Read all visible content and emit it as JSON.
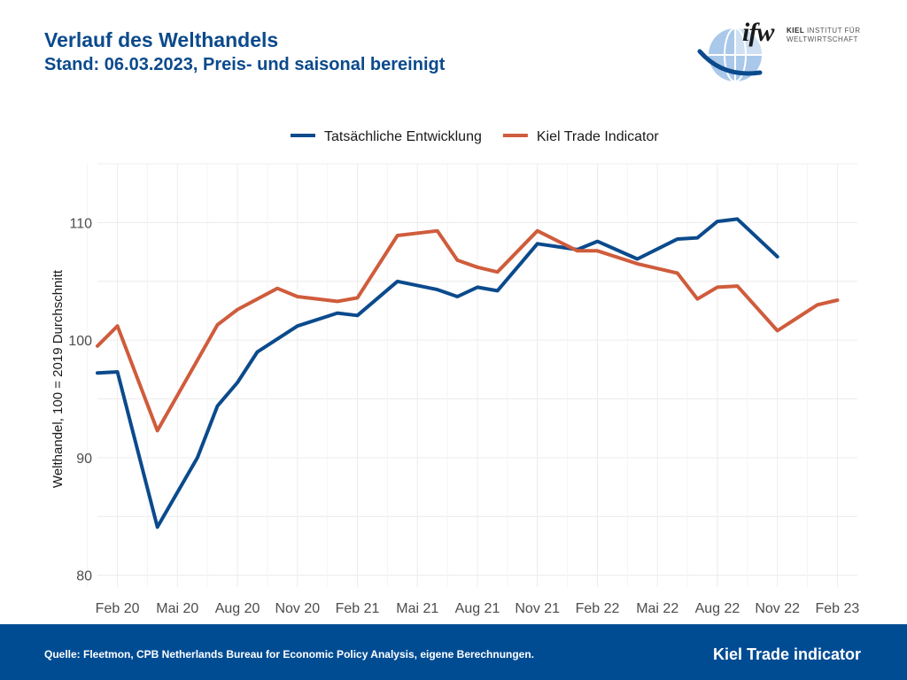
{
  "header": {
    "title": "Verlauf des Welthandels",
    "subtitle": "Stand: 06.03.2023, Preis- und saisonal bereinigt"
  },
  "logo": {
    "mark": "ifw",
    "line1_bold": "KIEL",
    "line1_rest": " INSTITUT FÜR",
    "line2": "WELTWIRTSCHAFT",
    "icon": "globe-icon"
  },
  "footer": {
    "source": "Quelle: Fleetmon, CPB Netherlands Bureau for Economic Policy Analysis, eigene Berechnungen.",
    "brand": "Kiel Trade indicator"
  },
  "chart_data": {
    "type": "line",
    "ylabel": "Welthandel, 100 = 2019 Durchschnitt",
    "xlabel": "",
    "ylim": [
      79,
      115
    ],
    "yticks": [
      80,
      90,
      100,
      110
    ],
    "grid": true,
    "legend": "top-center",
    "x_ticks": [
      {
        "label": "Feb 20",
        "date": "2020-02"
      },
      {
        "label": "Mai 20",
        "date": "2020-05"
      },
      {
        "label": "Aug 20",
        "date": "2020-08"
      },
      {
        "label": "Nov 20",
        "date": "2020-11"
      },
      {
        "label": "Feb 21",
        "date": "2021-02"
      },
      {
        "label": "Mai 21",
        "date": "2021-05"
      },
      {
        "label": "Aug 21",
        "date": "2021-08"
      },
      {
        "label": "Nov 21",
        "date": "2021-11"
      },
      {
        "label": "Feb 22",
        "date": "2022-02"
      },
      {
        "label": "Mai 22",
        "date": "2022-05"
      },
      {
        "label": "Aug 22",
        "date": "2022-08"
      },
      {
        "label": "Nov 22",
        "date": "2022-11"
      },
      {
        "label": "Feb 23",
        "date": "2023-02"
      }
    ],
    "xlim": [
      "2020-01",
      "2023-03"
    ],
    "series": [
      {
        "name": "Tatsächliche Entwicklung",
        "color": "#0b4a8c",
        "points": [
          {
            "x": "2020-01",
            "y": 97.2
          },
          {
            "x": "2020-02",
            "y": 97.3
          },
          {
            "x": "2020-04",
            "y": 84.1
          },
          {
            "x": "2020-06",
            "y": 90.0
          },
          {
            "x": "2020-07",
            "y": 94.4
          },
          {
            "x": "2020-08",
            "y": 96.4
          },
          {
            "x": "2020-09",
            "y": 99.0
          },
          {
            "x": "2020-11",
            "y": 101.2
          },
          {
            "x": "2021-01",
            "y": 102.3
          },
          {
            "x": "2021-02",
            "y": 102.1
          },
          {
            "x": "2021-04",
            "y": 105.0
          },
          {
            "x": "2021-06",
            "y": 104.3
          },
          {
            "x": "2021-07",
            "y": 103.7
          },
          {
            "x": "2021-08",
            "y": 104.5
          },
          {
            "x": "2021-09",
            "y": 104.2
          },
          {
            "x": "2021-11",
            "y": 108.2
          },
          {
            "x": "2022-01",
            "y": 107.7
          },
          {
            "x": "2022-02",
            "y": 108.4
          },
          {
            "x": "2022-04",
            "y": 106.9
          },
          {
            "x": "2022-06",
            "y": 108.6
          },
          {
            "x": "2022-07",
            "y": 108.7
          },
          {
            "x": "2022-08",
            "y": 110.1
          },
          {
            "x": "2022-09",
            "y": 110.3
          },
          {
            "x": "2022-11",
            "y": 107.1
          }
        ]
      },
      {
        "name": "Kiel Trade Indicator",
        "color": "#cf5c3c",
        "points": [
          {
            "x": "2020-01",
            "y": 99.5
          },
          {
            "x": "2020-02",
            "y": 101.2
          },
          {
            "x": "2020-04",
            "y": 92.3
          },
          {
            "x": "2020-07",
            "y": 101.3
          },
          {
            "x": "2020-08",
            "y": 102.6
          },
          {
            "x": "2020-10",
            "y": 104.4
          },
          {
            "x": "2020-11",
            "y": 103.7
          },
          {
            "x": "2021-01",
            "y": 103.3
          },
          {
            "x": "2021-02",
            "y": 103.6
          },
          {
            "x": "2021-04",
            "y": 108.9
          },
          {
            "x": "2021-06",
            "y": 109.3
          },
          {
            "x": "2021-07",
            "y": 106.8
          },
          {
            "x": "2021-08",
            "y": 106.2
          },
          {
            "x": "2021-09",
            "y": 105.8
          },
          {
            "x": "2021-11",
            "y": 109.3
          },
          {
            "x": "2022-01",
            "y": 107.6
          },
          {
            "x": "2022-02",
            "y": 107.6
          },
          {
            "x": "2022-04",
            "y": 106.5
          },
          {
            "x": "2022-06",
            "y": 105.7
          },
          {
            "x": "2022-07",
            "y": 103.5
          },
          {
            "x": "2022-08",
            "y": 104.5
          },
          {
            "x": "2022-09",
            "y": 104.6
          },
          {
            "x": "2022-11",
            "y": 100.8
          },
          {
            "x": "2023-01",
            "y": 103.0
          },
          {
            "x": "2023-02",
            "y": 103.4
          }
        ]
      }
    ]
  }
}
